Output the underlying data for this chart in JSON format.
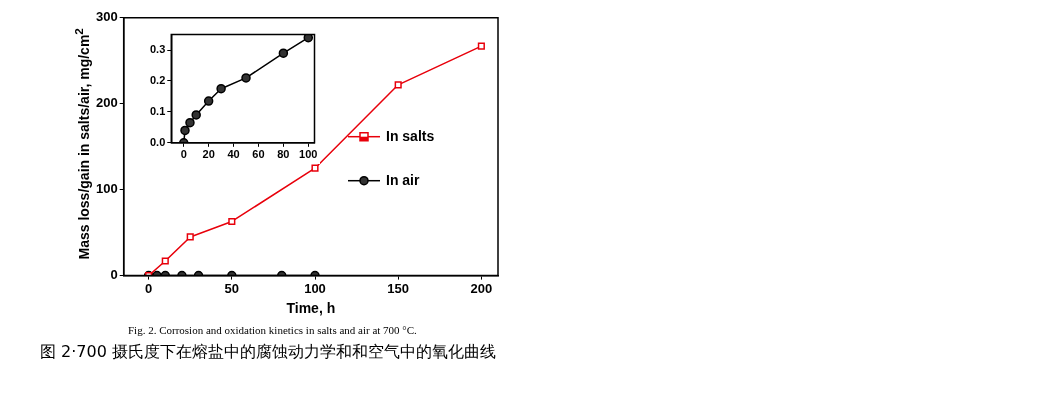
{
  "chart_data": [
    {
      "type": "line",
      "xlabel": "Time, h",
      "ylabel": "Mass loss/gain in salts/air, mg/cm$^{2}$",
      "xlim": [
        -15,
        210
      ],
      "xticks": [
        0,
        50,
        100,
        150,
        200
      ],
      "ylim": [
        0,
        300
      ],
      "yticks": [
        0,
        100,
        200,
        300
      ],
      "grid": false,
      "legend": "right",
      "line_style": "solid",
      "series": [
        {
          "name": "In salts",
          "color": "#e8000b",
          "marker": "square",
          "x": [
            0,
            10,
            25,
            50,
            100,
            150,
            200
          ],
          "values": [
            0,
            17,
            45,
            63,
            125,
            222,
            267
          ]
        },
        {
          "name": "In air",
          "color": "#000000",
          "marker": "circle",
          "x": [
            0,
            5,
            10,
            20,
            30,
            50,
            80,
            100
          ],
          "values": [
            0,
            0,
            0,
            0,
            0,
            0,
            0,
            0
          ]
        }
      ],
      "annotations": [
        "Fig. 2. Corrosion and oxidation kinetics in salts and air at 700 °C.",
        "图 2·700 摄氏度下在熔盐中的腐蚀动力学和和空气中的氧化曲线"
      ]
    },
    {
      "type": "line",
      "xlim": [
        -10,
        105
      ],
      "xticks": [
        0,
        20,
        40,
        60,
        80,
        100
      ],
      "ylim": [
        0,
        0.35
      ],
      "yticks": [
        {
          "value": 0,
          "label": "0.0"
        },
        0.1,
        0.2,
        0.3
      ],
      "grid": false,
      "line_style": "solid",
      "series": [
        {
          "color": "#000000",
          "marker": "circle",
          "x": [
            0,
            1,
            5,
            10,
            20,
            30,
            50,
            80,
            100
          ],
          "values": [
            0,
            0.04,
            0.065,
            0.09,
            0.135,
            0.175,
            0.21,
            0.29,
            0.34
          ]
        }
      ]
    }
  ]
}
